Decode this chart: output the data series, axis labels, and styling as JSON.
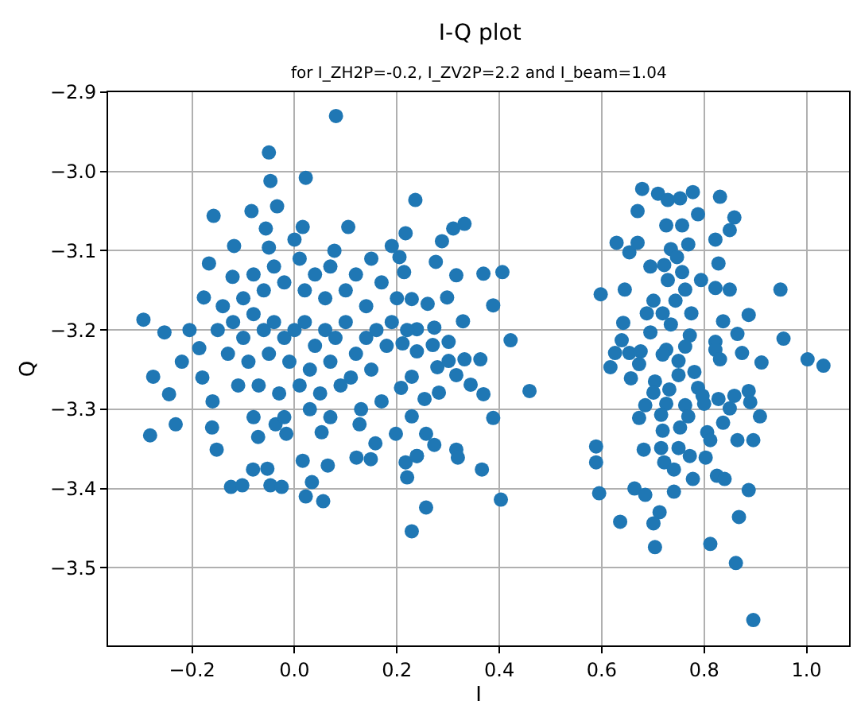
{
  "chart_data": {
    "type": "scatter",
    "title": "I-Q plot",
    "subtitle": "for I_ZH2P=-0.2, I_ZV2P=2.2 and I_beam=1.04",
    "xlabel": "I",
    "ylabel": "Q",
    "marker": "circle",
    "grid": true,
    "xlim": [
      -0.364,
      1.083
    ],
    "ylim": [
      -3.598,
      -2.9
    ],
    "xticks": [
      {
        "value": -0.2,
        "label": "−0.2"
      },
      {
        "value": 0,
        "label": "0.0"
      },
      {
        "value": 0.2,
        "label": "0.2"
      },
      {
        "value": 0.4,
        "label": "0.4"
      },
      {
        "value": 0.6,
        "label": "0.6"
      },
      {
        "value": 0.8,
        "label": "0.8"
      },
      {
        "value": 1.0,
        "label": "1.0"
      }
    ],
    "yticks": [
      {
        "value": -2.9,
        "label": "−2.9"
      },
      {
        "value": -3.0,
        "label": "−3.0"
      },
      {
        "value": -3.1,
        "label": "−3.1"
      },
      {
        "value": -3.2,
        "label": "−3.2"
      },
      {
        "value": -3.3,
        "label": "−3.3"
      },
      {
        "value": -3.4,
        "label": "−3.4"
      },
      {
        "value": -3.5,
        "label": "−3.5"
      }
    ],
    "series": [
      {
        "color": "#1f77b4",
        "x": [
          0.081,
          -0.05,
          -0.047,
          0.022,
          0.236,
          -0.158,
          -0.084,
          -0.034,
          0.105,
          -0.056,
          0.016,
          -0.118,
          -0.05,
          0,
          0.078,
          0.217,
          0.19,
          -0.167,
          -0.121,
          -0.177,
          -0.295,
          -0.254,
          -0.205,
          -0.22,
          -0.186,
          -0.276,
          -0.245,
          -0.282,
          -0.232,
          -0.152,
          -0.081,
          -0.053,
          -0.124,
          -0.102,
          -0.047,
          -0.025,
          0.022,
          0.056,
          0.034,
          0.016,
          0.065,
          -0.016,
          0.053,
          -0.071,
          -0.161,
          -0.037,
          0.121,
          0.149,
          0.22,
          0.229,
          0.217,
          0.239,
          0.127,
          0.158,
          0.198,
          0.31,
          0.332,
          0.288,
          0.205,
          0.276,
          0.214,
          0.316,
          0.369,
          0.406,
          0.229,
          0.26,
          0.298,
          0.388,
          0.329,
          0.239,
          0.273,
          0.422,
          0.211,
          0.301,
          0.239,
          0.27,
          0.363,
          0.332,
          0.279,
          0.301,
          0.229,
          0.316,
          0.208,
          0.344,
          0.282,
          0.369,
          0.459,
          0.254,
          0.229,
          0.388,
          0.257,
          0.273,
          0.316,
          0.319,
          0.239,
          0.366,
          0.257,
          0.403,
          0.598,
          0.645,
          0.629,
          0.654,
          0.67,
          0.67,
          0.679,
          0.71,
          0.729,
          0.753,
          0.778,
          0.831,
          0.726,
          0.757,
          0.788,
          0.859,
          0.85,
          0.822,
          0.769,
          0.735,
          0.747,
          0.695,
          0.722,
          0.757,
          0.828,
          0.729,
          0.763,
          0.794,
          0.822,
          0.85,
          0.949,
          0.701,
          0.744,
          0.688,
          0.719,
          0.775,
          0.837,
          0.887,
          0.642,
          0.695,
          0.735,
          0.772,
          0.865,
          0.955,
          0.639,
          0.626,
          0.654,
          0.676,
          0.726,
          0.763,
          0.822,
          0.822,
          0.617,
          0.673,
          0.719,
          0.75,
          0.831,
          0.874,
          0.912,
          1.002,
          1.033,
          0.657,
          0.704,
          0.75,
          0.781,
          0.701,
          0.732,
          0.788,
          0.797,
          0.828,
          0.887,
          0.859,
          0.89,
          0.685,
          0.726,
          0.763,
          0.8,
          0.85,
          0.673,
          0.716,
          0.769,
          0.909,
          0.837,
          0.719,
          0.753,
          0.806,
          0.589,
          0.682,
          0.716,
          0.75,
          0.812,
          0.865,
          0.896,
          0.589,
          0.722,
          0.772,
          0.803,
          0.741,
          0.778,
          0.825,
          0.84,
          0.595,
          0.664,
          0.685,
          0.741,
          0.887,
          0.713,
          0.701,
          0.636,
          0.868,
          0.704,
          0.812,
          0.862,
          0.896,
          -0.15,
          -0.12,
          -0.1,
          -0.08,
          -0.06,
          -0.04,
          -0.02,
          0,
          0.02,
          0.04,
          0.06,
          0.08,
          0.1,
          0.12,
          0.14,
          0.16,
          0.18,
          -0.13,
          -0.09,
          -0.05,
          -0.01,
          0.03,
          0.07,
          0.11,
          0.15,
          -0.11,
          -0.07,
          -0.03,
          0.01,
          0.05,
          0.09,
          -0.14,
          -0.1,
          -0.06,
          -0.02,
          0.02,
          0.06,
          0.1,
          0.14,
          -0.04,
          0.01,
          0.04,
          0.12,
          0.17,
          -0.08,
          0.07,
          0.15,
          0.2,
          0.19,
          0.22,
          -0.18,
          -0.16,
          0.17,
          0.13,
          -0.02,
          0.03,
          0.07,
          -0.08
        ],
        "values": [
          -2.93,
          -2.976,
          -3.012,
          -3.008,
          -3.036,
          -3.056,
          -3.05,
          -3.044,
          -3.07,
          -3.072,
          -3.07,
          -3.094,
          -3.096,
          -3.086,
          -3.1,
          -3.078,
          -3.094,
          -3.116,
          -3.133,
          -3.159,
          -3.187,
          -3.203,
          -3.2,
          -3.24,
          -3.223,
          -3.259,
          -3.281,
          -3.333,
          -3.319,
          -3.351,
          -3.376,
          -3.375,
          -3.398,
          -3.396,
          -3.396,
          -3.398,
          -3.41,
          -3.416,
          -3.392,
          -3.365,
          -3.371,
          -3.331,
          -3.329,
          -3.335,
          -3.323,
          -3.319,
          -3.361,
          -3.363,
          -3.386,
          -3.454,
          -3.367,
          -3.359,
          -3.319,
          -3.343,
          -3.331,
          -3.072,
          -3.066,
          -3.088,
          -3.108,
          -3.114,
          -3.127,
          -3.131,
          -3.129,
          -3.127,
          -3.161,
          -3.167,
          -3.159,
          -3.169,
          -3.189,
          -3.199,
          -3.197,
          -3.213,
          -3.217,
          -3.215,
          -3.227,
          -3.219,
          -3.237,
          -3.237,
          -3.247,
          -3.239,
          -3.259,
          -3.257,
          -3.273,
          -3.269,
          -3.279,
          -3.281,
          -3.277,
          -3.287,
          -3.309,
          -3.311,
          -3.331,
          -3.345,
          -3.351,
          -3.361,
          -3.359,
          -3.376,
          -3.424,
          -3.414,
          -3.155,
          -3.149,
          -3.09,
          -3.102,
          -3.09,
          -3.05,
          -3.022,
          -3.028,
          -3.036,
          -3.034,
          -3.026,
          -3.032,
          -3.068,
          -3.068,
          -3.054,
          -3.058,
          -3.074,
          -3.086,
          -3.092,
          -3.098,
          -3.108,
          -3.12,
          -3.118,
          -3.127,
          -3.116,
          -3.137,
          -3.149,
          -3.137,
          -3.147,
          -3.149,
          -3.149,
          -3.163,
          -3.163,
          -3.179,
          -3.179,
          -3.179,
          -3.189,
          -3.181,
          -3.191,
          -3.203,
          -3.193,
          -3.207,
          -3.205,
          -3.211,
          -3.213,
          -3.229,
          -3.229,
          -3.227,
          -3.225,
          -3.221,
          -3.215,
          -3.225,
          -3.247,
          -3.243,
          -3.231,
          -3.239,
          -3.237,
          -3.229,
          -3.241,
          -3.237,
          -3.245,
          -3.261,
          -3.265,
          -3.257,
          -3.253,
          -3.279,
          -3.275,
          -3.273,
          -3.283,
          -3.287,
          -3.277,
          -3.283,
          -3.291,
          -3.295,
          -3.293,
          -3.295,
          -3.293,
          -3.299,
          -3.311,
          -3.307,
          -3.309,
          -3.309,
          -3.317,
          -3.327,
          -3.323,
          -3.329,
          -3.347,
          -3.351,
          -3.349,
          -3.349,
          -3.339,
          -3.339,
          -3.339,
          -3.367,
          -3.367,
          -3.359,
          -3.361,
          -3.376,
          -3.388,
          -3.384,
          -3.388,
          -3.406,
          -3.4,
          -3.408,
          -3.404,
          -3.402,
          -3.43,
          -3.444,
          -3.442,
          -3.436,
          -3.474,
          -3.47,
          -3.494,
          -3.566,
          -3.2,
          -3.19,
          -3.21,
          -3.18,
          -3.2,
          -3.19,
          -3.21,
          -3.2,
          -3.19,
          -3.22,
          -3.2,
          -3.21,
          -3.19,
          -3.23,
          -3.21,
          -3.2,
          -3.22,
          -3.23,
          -3.24,
          -3.23,
          -3.24,
          -3.25,
          -3.24,
          -3.26,
          -3.25,
          -3.27,
          -3.27,
          -3.28,
          -3.27,
          -3.28,
          -3.27,
          -3.17,
          -3.16,
          -3.15,
          -3.14,
          -3.15,
          -3.16,
          -3.15,
          -3.17,
          -3.12,
          -3.11,
          -3.13,
          -3.13,
          -3.14,
          -3.13,
          -3.12,
          -3.11,
          -3.16,
          -3.19,
          -3.2,
          -3.26,
          -3.29,
          -3.29,
          -3.3,
          -3.31,
          -3.3,
          -3.31,
          -3.31
        ]
      }
    ]
  }
}
